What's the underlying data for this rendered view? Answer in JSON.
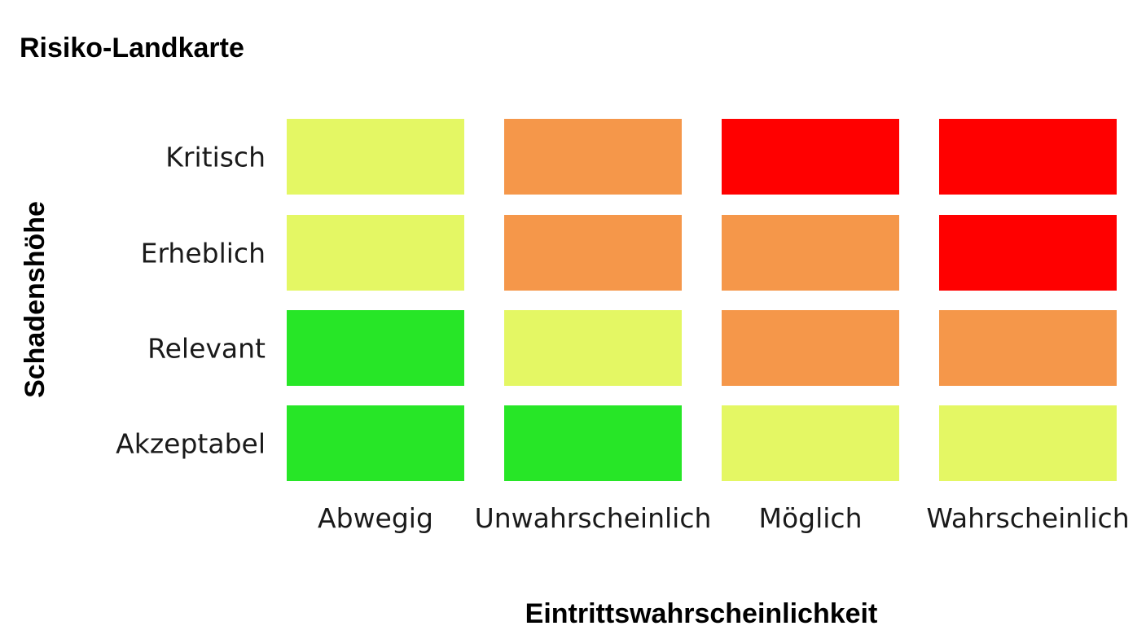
{
  "chart_data": {
    "type": "heatmap",
    "title": "Risiko-Landkarte",
    "xlabel": "Eintrittswahrscheinlichkeit",
    "ylabel": "Schadenshöhe",
    "x_categories": [
      "Abwegig",
      "Unwahrscheinlich",
      "Möglich",
      "Wahrscheinlich"
    ],
    "y_categories": [
      "Kritisch",
      "Erheblich",
      "Relevant",
      "Akzeptabel"
    ],
    "levels": [
      "green",
      "yellow",
      "orange",
      "red"
    ],
    "level_colors": {
      "green": "#27e627",
      "yellow": "#e4f764",
      "orange": "#f5974a",
      "red": "#ff0000"
    },
    "cells": [
      [
        "yellow",
        "orange",
        "red",
        "red"
      ],
      [
        "yellow",
        "orange",
        "orange",
        "red"
      ],
      [
        "green",
        "yellow",
        "orange",
        "orange"
      ],
      [
        "green",
        "green",
        "yellow",
        "yellow"
      ]
    ],
    "legend": "none",
    "grid": false
  }
}
